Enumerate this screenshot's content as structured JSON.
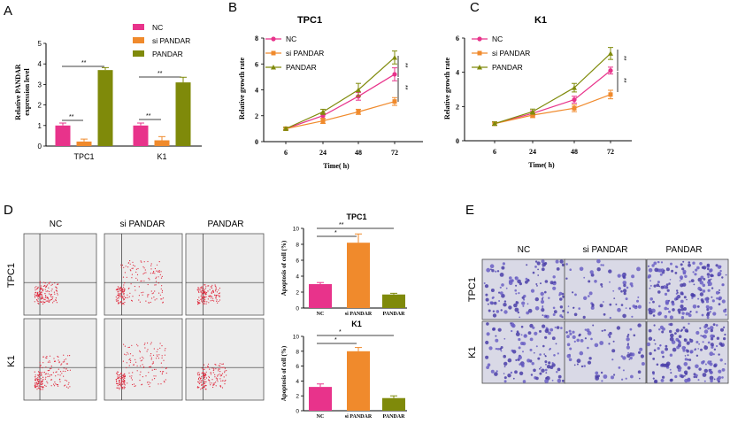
{
  "panels": {
    "A": "A",
    "B": "B",
    "C": "C",
    "D": "D",
    "E": "E"
  },
  "colors": {
    "nc": "#e8338b",
    "si": "#f08a2c",
    "pandar": "#7f8a0a"
  },
  "legend": {
    "nc": "NC",
    "si": "si PANDAR",
    "pandar": "PANDAR"
  },
  "chart_data": [
    {
      "id": "A",
      "type": "bar",
      "ylabel_line1": "Relative PANDAR",
      "ylabel_line2": "expression level",
      "categories": [
        "TPC1",
        "K1"
      ],
      "ylim": [
        0,
        5
      ],
      "yticks": [
        "0",
        "1",
        "2",
        "3",
        "4",
        "5"
      ],
      "series": [
        {
          "name": "NC",
          "values": [
            1.0,
            1.0
          ],
          "err": [
            0.12,
            0.12
          ]
        },
        {
          "name": "si PANDAR",
          "values": [
            0.22,
            0.28
          ],
          "err": [
            0.12,
            0.18
          ]
        },
        {
          "name": "PANDAR",
          "values": [
            3.7,
            3.1
          ],
          "err": [
            0.12,
            0.25
          ]
        }
      ],
      "significance": [
        "**",
        "**",
        "**",
        "**"
      ]
    },
    {
      "id": "B",
      "type": "line",
      "title": "TPC1",
      "xlabel": "Time( h)",
      "ylabel": "Relative growth rate",
      "x": [
        "6",
        "24",
        "48",
        "72"
      ],
      "ylim": [
        0,
        8
      ],
      "yticks": [
        "0",
        "2",
        "4",
        "6",
        "8"
      ],
      "series": [
        {
          "name": "NC",
          "values": [
            1.0,
            2.0,
            3.5,
            5.2
          ],
          "err": [
            0.1,
            0.2,
            0.3,
            0.5
          ]
        },
        {
          "name": "si PANDAR",
          "values": [
            1.0,
            1.6,
            2.3,
            3.1
          ],
          "err": [
            0.1,
            0.2,
            0.2,
            0.3
          ]
        },
        {
          "name": "PANDAR",
          "values": [
            1.0,
            2.3,
            4.0,
            6.5
          ],
          "err": [
            0.1,
            0.2,
            0.5,
            0.5
          ]
        }
      ],
      "significance": [
        "**",
        "**"
      ]
    },
    {
      "id": "C",
      "type": "line",
      "title": "K1",
      "xlabel": "Time( h)",
      "ylabel": "Relative growth rate",
      "x": [
        "6",
        "24",
        "48",
        "72"
      ],
      "ylim": [
        0,
        6
      ],
      "yticks": [
        "0",
        "2",
        "4",
        "6"
      ],
      "series": [
        {
          "name": "NC",
          "values": [
            1.0,
            1.6,
            2.4,
            4.1
          ],
          "err": [
            0.1,
            0.15,
            0.2,
            0.2
          ]
        },
        {
          "name": "si PANDAR",
          "values": [
            1.0,
            1.5,
            1.9,
            2.7
          ],
          "err": [
            0.1,
            0.15,
            0.2,
            0.25
          ]
        },
        {
          "name": "PANDAR",
          "values": [
            1.0,
            1.7,
            3.1,
            5.1
          ],
          "err": [
            0.1,
            0.15,
            0.25,
            0.35
          ]
        }
      ],
      "significance": [
        "**",
        "**"
      ]
    },
    {
      "id": "D_TPC1",
      "type": "bar",
      "title": "TPC1",
      "ylabel": "Apoptosis of cell (%)",
      "categories": [
        "NC",
        "si PANDAR",
        "PANDAR"
      ],
      "ylim": [
        0,
        10
      ],
      "yticks": [
        "0",
        "2",
        "4",
        "6",
        "8",
        "10"
      ],
      "values": [
        3.0,
        8.2,
        1.7
      ],
      "err": [
        0.2,
        1.1,
        0.15
      ],
      "significance": [
        "**",
        "*"
      ]
    },
    {
      "id": "D_K1",
      "type": "bar",
      "title": "K1",
      "ylabel": "Apoptosis of cell (%)",
      "categories": [
        "NC",
        "si PANDAR",
        "PANDAR"
      ],
      "ylim": [
        0,
        10
      ],
      "yticks": [
        "0",
        "2",
        "4",
        "6",
        "8",
        "10"
      ],
      "values": [
        3.2,
        8.0,
        1.7
      ],
      "err": [
        0.4,
        0.5,
        0.3
      ],
      "significance": [
        "*",
        "*"
      ]
    }
  ],
  "flow": {
    "columns": [
      "NC",
      "si PANDAR",
      "PANDAR"
    ],
    "rows": [
      "TPC1",
      "K1"
    ]
  },
  "transwell": {
    "columns": [
      "NC",
      "si PANDAR",
      "PANDAR"
    ],
    "rows": [
      "TPC1",
      "K1"
    ]
  }
}
